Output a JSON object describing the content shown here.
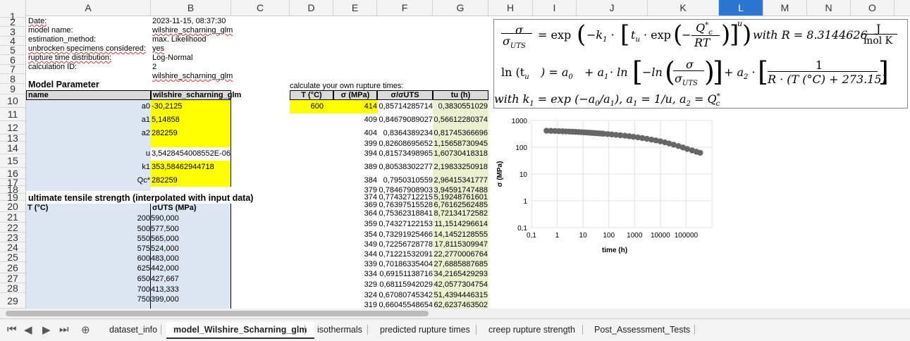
{
  "columns": [
    "A",
    "B",
    "C",
    "D",
    "E",
    "F",
    "G",
    "H",
    "I",
    "J",
    "K",
    "L",
    "M",
    "N",
    "O"
  ],
  "selected_column": "L",
  "rows": [
    "1",
    "2",
    "3",
    "4",
    "5",
    "6",
    "7",
    "8",
    "9",
    "10",
    "11",
    "12",
    "13",
    "14",
    "15",
    "16",
    "17",
    "18",
    "19",
    "20",
    "21",
    "22",
    "23",
    "24",
    "25",
    "26",
    "27",
    "28",
    "29"
  ],
  "meta": [
    {
      "label": "Date:",
      "value": "2023-11-15, 08:37:30"
    },
    {
      "label": "model name:",
      "value": "wilshire_scharning_glm"
    },
    {
      "label": "estimation_method:",
      "value": "max. Likelihood"
    },
    {
      "label": "unbrocken specimens considered:",
      "value": "yes"
    },
    {
      "label": "rupture time distribution:",
      "value": "Log-Normal"
    },
    {
      "label": "calculation ID:",
      "value": "2"
    },
    {
      "label": "",
      "value": "wilshire_scharning_glm"
    }
  ],
  "model_parameter": {
    "title": "Model Parameter",
    "header_name": "name",
    "header_value": "wilshire_scharning_glm",
    "params": [
      {
        "name": "a0",
        "value": "-30,2125",
        "highlight": true
      },
      {
        "name": "a1",
        "value": "5,14858",
        "highlight": true
      },
      {
        "name": "a2",
        "value": "282259",
        "highlight": true
      },
      {
        "name": "",
        "value": "",
        "highlight": true
      },
      {
        "name": "u",
        "value": "3,5428454008552E-06",
        "highlight": false
      },
      {
        "name": "k1",
        "value": "353,58462944718",
        "highlight": true
      },
      {
        "name": "Qc*",
        "value": "282259",
        "highlight": true
      }
    ]
  },
  "uts": {
    "title": "ultimate tensile strength (interpolated with input data)",
    "header_t": "T (°C)",
    "header_s": "σUTS (MPa)",
    "rows": [
      {
        "t": "200",
        "s": "590,000"
      },
      {
        "t": "500",
        "s": "577,500"
      },
      {
        "t": "550",
        "s": "565,000"
      },
      {
        "t": "575",
        "s": "524,000"
      },
      {
        "t": "600",
        "s": "483,000"
      },
      {
        "t": "625",
        "s": "442,000"
      },
      {
        "t": "650",
        "s": "427,667"
      },
      {
        "t": "700",
        "s": "413,333"
      },
      {
        "t": "750",
        "s": "399,000"
      }
    ]
  },
  "calc": {
    "title": "calculate your own rupture times:",
    "headers": [
      "T (°C)",
      "σ (MPa)",
      "σ/σUTS",
      "tu (h)"
    ],
    "input_T": "600",
    "rows": [
      {
        "s": "414",
        "r": "0,85714285714",
        "tu": "0,3830551029"
      },
      {
        "s": "409",
        "r": "0,84679089027",
        "tu": "0,56612280374"
      },
      {
        "s": "404",
        "r": "0,8364389234",
        "tu": "0,81745366696"
      },
      {
        "s": "399",
        "r": "0,82608695652",
        "tu": "1,15658730945"
      },
      {
        "s": "394",
        "r": "0,81573498965",
        "tu": "1,60730418318"
      },
      {
        "s": "389",
        "r": "0,80538302277",
        "tu": "2,19833250918"
      },
      {
        "s": "384",
        "r": "0,7950310559",
        "tu": "2,96415341777"
      },
      {
        "s": "379",
        "r": "0,78467908903",
        "tu": "3,94591747488"
      },
      {
        "s": "374",
        "r": "0,77432712215",
        "tu": "5,19248761601"
      },
      {
        "s": "369",
        "r": "0,76397515528",
        "tu": "6,76162562485"
      },
      {
        "s": "364",
        "r": "0,75362318841",
        "tu": "8,72134172582"
      },
      {
        "s": "359",
        "r": "0,74327122153",
        "tu": "11,1514296614"
      },
      {
        "s": "354",
        "r": "0,73291925466",
        "tu": "14,1452128555"
      },
      {
        "s": "349",
        "r": "0,72256728778",
        "tu": "17,8115309947"
      },
      {
        "s": "344",
        "r": "0,71221532091",
        "tu": "22,2770006764"
      },
      {
        "s": "339",
        "r": "0,70186335404",
        "tu": "27,6885887685"
      },
      {
        "s": "334",
        "r": "0,69151138716",
        "tu": "34,2165429293"
      },
      {
        "s": "329",
        "r": "0,68115942029",
        "tu": "42,0577304754"
      },
      {
        "s": "324",
        "r": "0,67080745342",
        "tu": "51,4394446315"
      },
      {
        "s": "319",
        "r": "0,66045548654",
        "tu": "62,6237463502"
      }
    ]
  },
  "formula": {
    "l1_lhs_num": "σ",
    "l1_lhs_den": "σ",
    "l1_lhs_den_sub": "UTS",
    "l1_eq": "= exp",
    "l1_k": "−k",
    "l1_k_sub": "1",
    "l1_tu": "t",
    "l1_tu_sub": "u",
    "l1_exp": "· exp",
    "l1_q": "Q",
    "l1_q_sup": "*",
    "l1_q_sub": "c",
    "l1_rt": "RT",
    "l1_u": "u",
    "l1_with": "with  R = 8.3144626",
    "l1_unit_num": "J",
    "l1_unit_den": "mol K",
    "l2_lhs": "ln (t",
    "l2_lhs_sub": "u",
    "l2_mid": ") = a",
    "l2_a0_sub": "0",
    "l2_plus_a1": "+ a",
    "l2_a1_sub": "1",
    "l2_ln": "· ln",
    "l2_neg_ln": "−ln",
    "l2_frac_num": "σ",
    "l2_frac_den": "σ",
    "l2_frac_den_sub": "UTS",
    "l2_plus_a2": "+ a",
    "l2_a2_sub": "2",
    "l2_dot": "·",
    "l2_one": "1",
    "l2_den": "R · (T (°C) + 273.15)",
    "l3_text": "with  k",
    "l3_k_sub": "1",
    "l3_eq": "= exp (−a",
    "l3_a0_sub": "0",
    "l3_div": "/a",
    "l3_a1_sub": "1",
    "l3_u": "),  a",
    "l3_a1b_sub": "1",
    "l3_u2": "= 1/u,  a",
    "l3_a2_sub": "2",
    "l3_q": "= Q",
    "l3_q_sup": "*",
    "l3_q_sub": "c"
  },
  "chart_data": {
    "type": "scatter",
    "title": "",
    "xlabel": "time (h)",
    "ylabel": "σ (MPa)",
    "xscale": "log",
    "yscale": "log",
    "xlim": [
      0.1,
      1000000
    ],
    "ylim": [
      0.1,
      1000
    ],
    "xticks": [
      "0,1",
      "1",
      "10",
      "100",
      "1000",
      "10000",
      "100000"
    ],
    "yticks": [
      "1000",
      "100",
      "10",
      "1",
      "0,1"
    ],
    "grid": true,
    "series": [
      {
        "color": "#666666",
        "x": [
          0.383,
          0.566,
          0.817,
          1.157,
          1.607,
          2.198,
          2.964,
          3.946,
          5.192,
          6.762,
          8.721,
          11.15,
          14.15,
          17.81,
          22.28,
          27.69,
          34.22,
          42.06,
          51.44,
          62.62,
          90,
          130,
          190,
          280,
          420,
          620,
          900,
          1350,
          2000,
          3000,
          4500,
          6700,
          10000,
          15000,
          22000,
          33000,
          50000,
          75000,
          110000,
          170000,
          250000,
          350000
        ],
        "y": [
          414,
          409,
          404,
          399,
          394,
          389,
          384,
          379,
          374,
          369,
          364,
          359,
          354,
          349,
          344,
          339,
          334,
          329,
          324,
          319,
          310,
          300,
          290,
          280,
          270,
          258,
          246,
          233,
          220,
          207,
          193,
          180,
          166,
          152,
          138,
          124,
          111,
          98,
          86,
          76,
          68,
          62
        ]
      }
    ]
  },
  "tabs": [
    "dataset_info",
    "model_Wilshire_Scharning_glm",
    "isothermals",
    "predicted rupture times",
    "creep rupture strength",
    "Post_Assessment_Tests"
  ],
  "active_tab": "model_Wilshire_Scharning_glm",
  "nav_icons": [
    "first-sheet-icon",
    "prev-sheet-icon",
    "next-sheet-icon",
    "last-sheet-icon",
    "add-sheet-icon"
  ]
}
